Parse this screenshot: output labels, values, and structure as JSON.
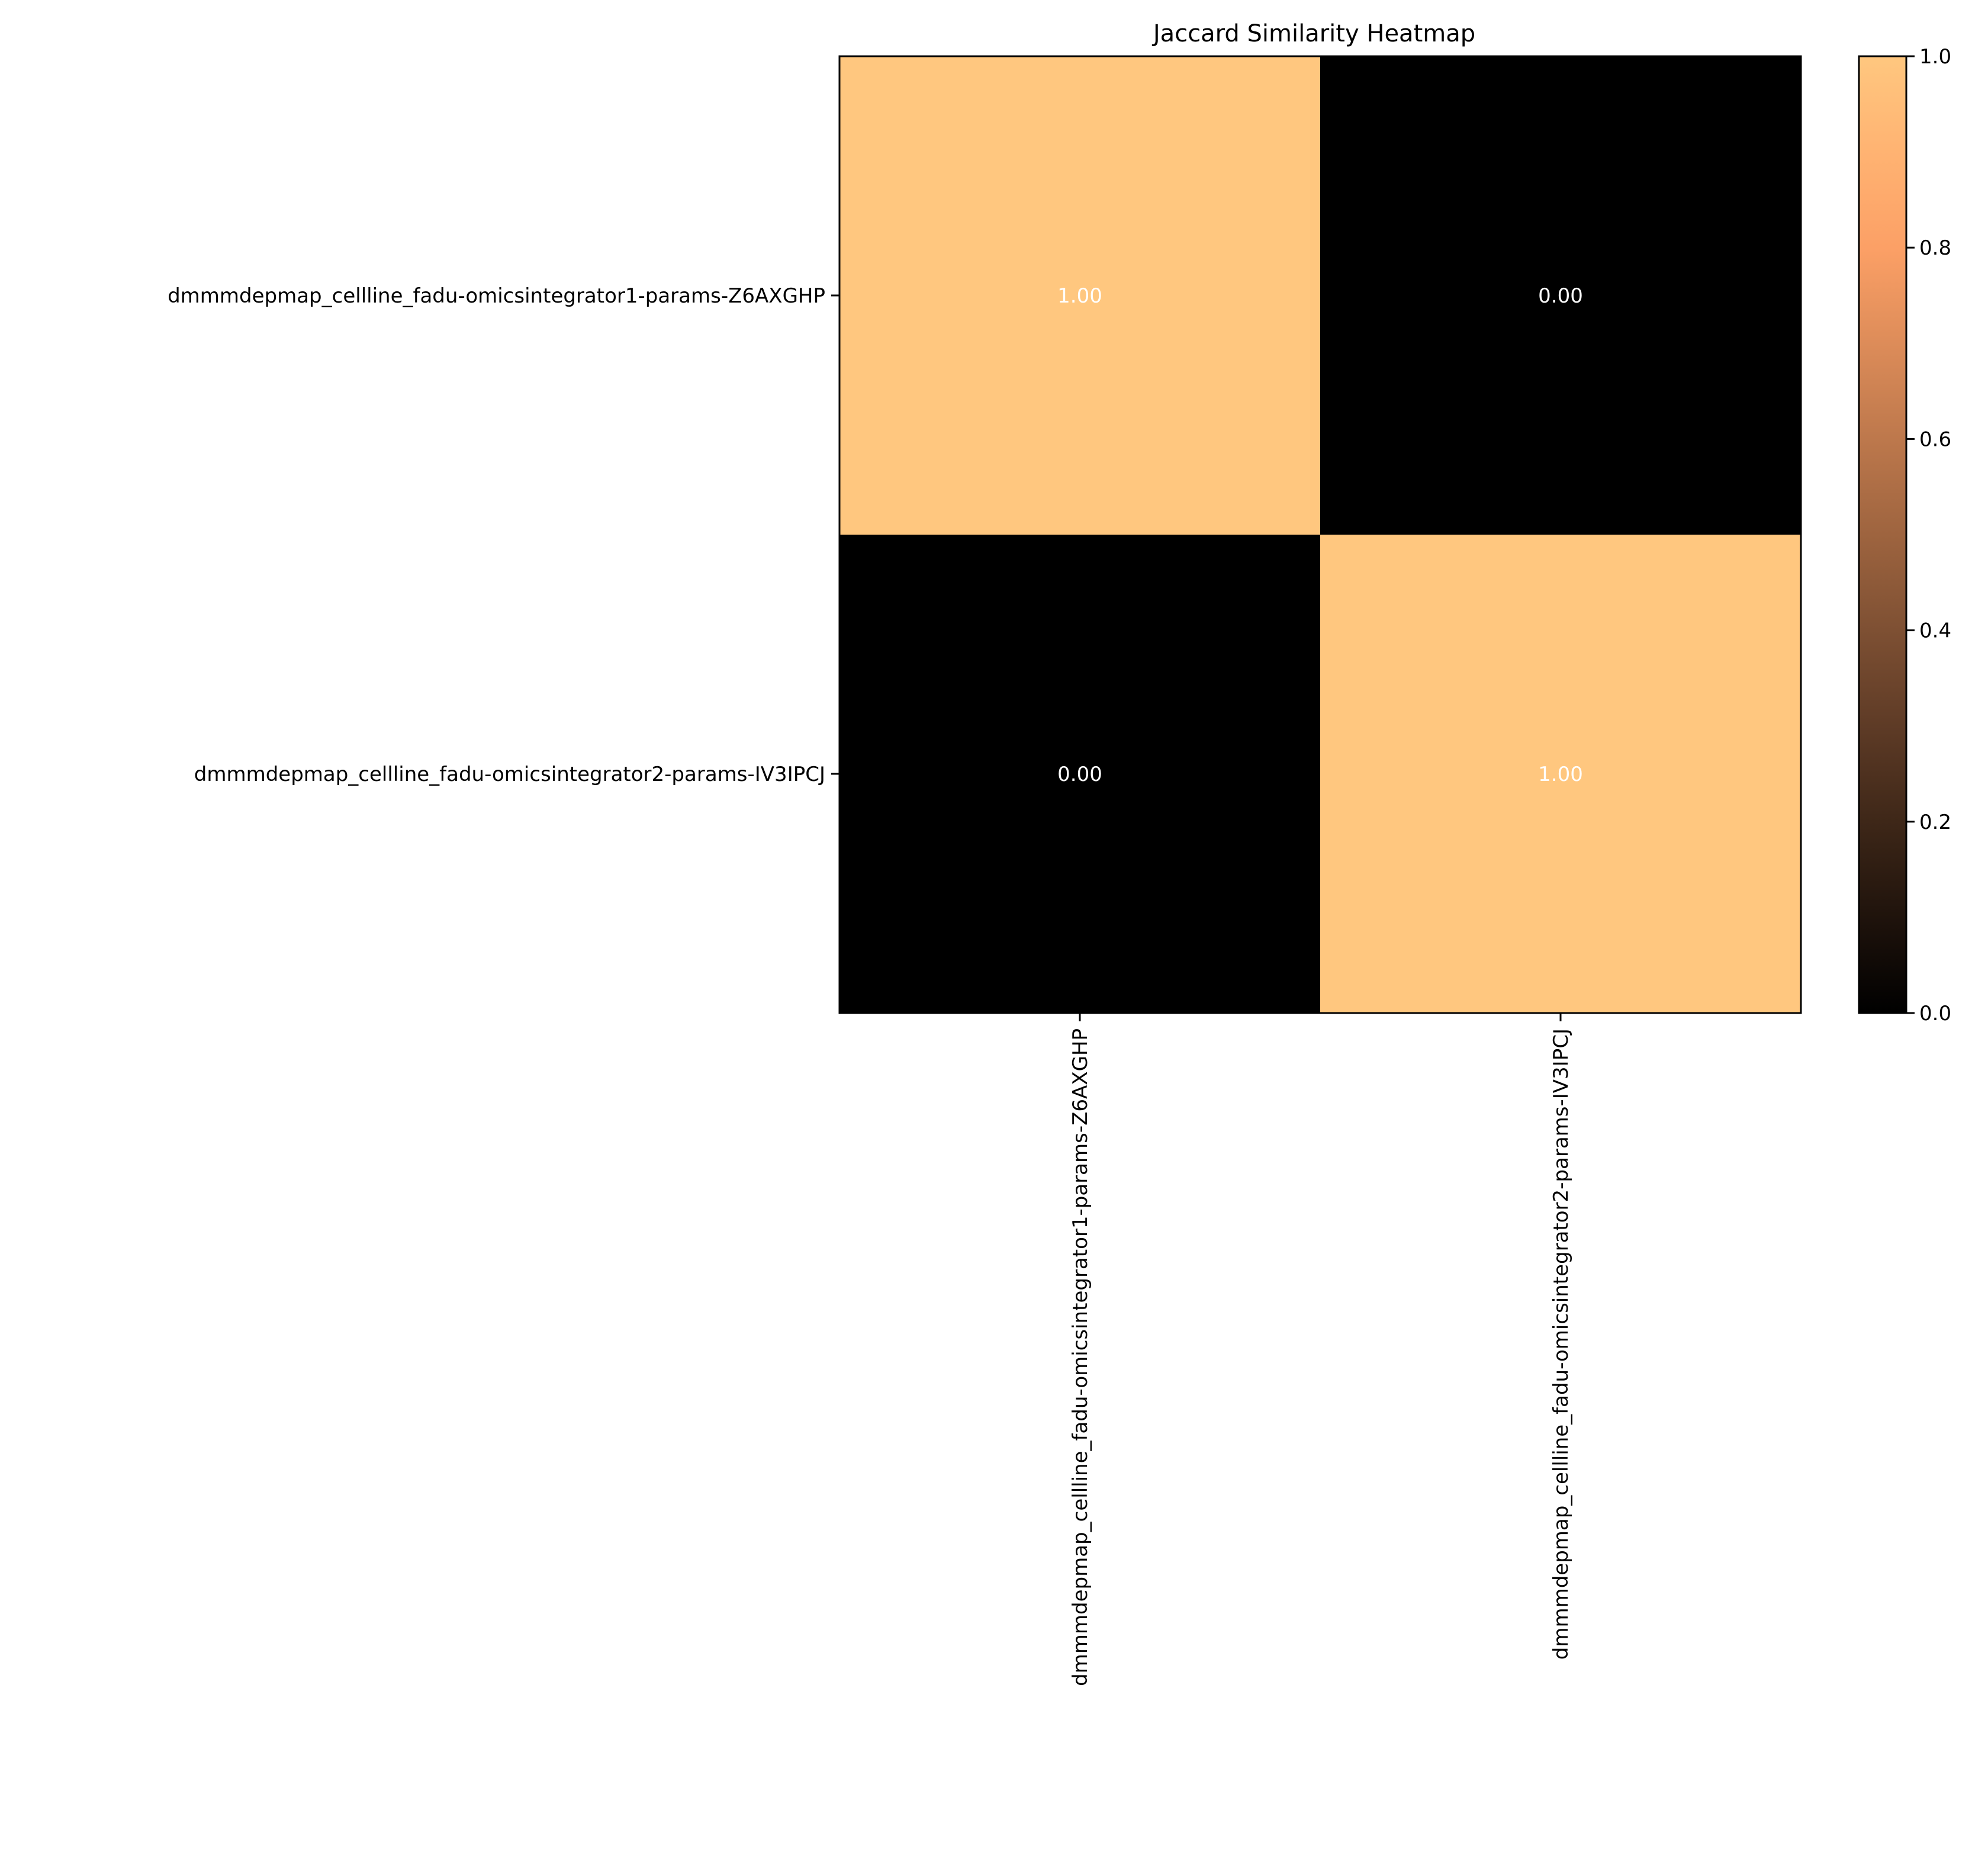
{
  "chart_data": {
    "type": "heatmap",
    "title": "Jaccard Similarity Heatmap",
    "rows": [
      "dmmmdepmap_cellline_fadu-omicsintegrator1-params-Z6AXGHP",
      "dmmmdepmap_cellline_fadu-omicsintegrator2-params-IV3IPCJ"
    ],
    "columns": [
      "dmmmdepmap_cellline_fadu-omicsintegrator1-params-Z6AXGHP",
      "dmmmdepmap_cellline_fadu-omicsintegrator2-params-IV3IPCJ"
    ],
    "values": [
      [
        1.0,
        0.0
      ],
      [
        0.0,
        1.0
      ]
    ],
    "cell_labels": [
      [
        "1.00",
        "0.00"
      ],
      [
        "0.00",
        "1.00"
      ]
    ],
    "colormap": "copper",
    "colormap_stops": [
      "#000000",
      "#ffc77f"
    ],
    "colorbar": {
      "range": [
        0.0,
        1.0
      ],
      "ticks": [
        0.0,
        0.2,
        0.4,
        0.6,
        0.8,
        1.0
      ],
      "tick_labels": [
        "0.0",
        "0.2",
        "0.4",
        "0.6",
        "0.8",
        "1.0"
      ],
      "placement": "right"
    }
  }
}
